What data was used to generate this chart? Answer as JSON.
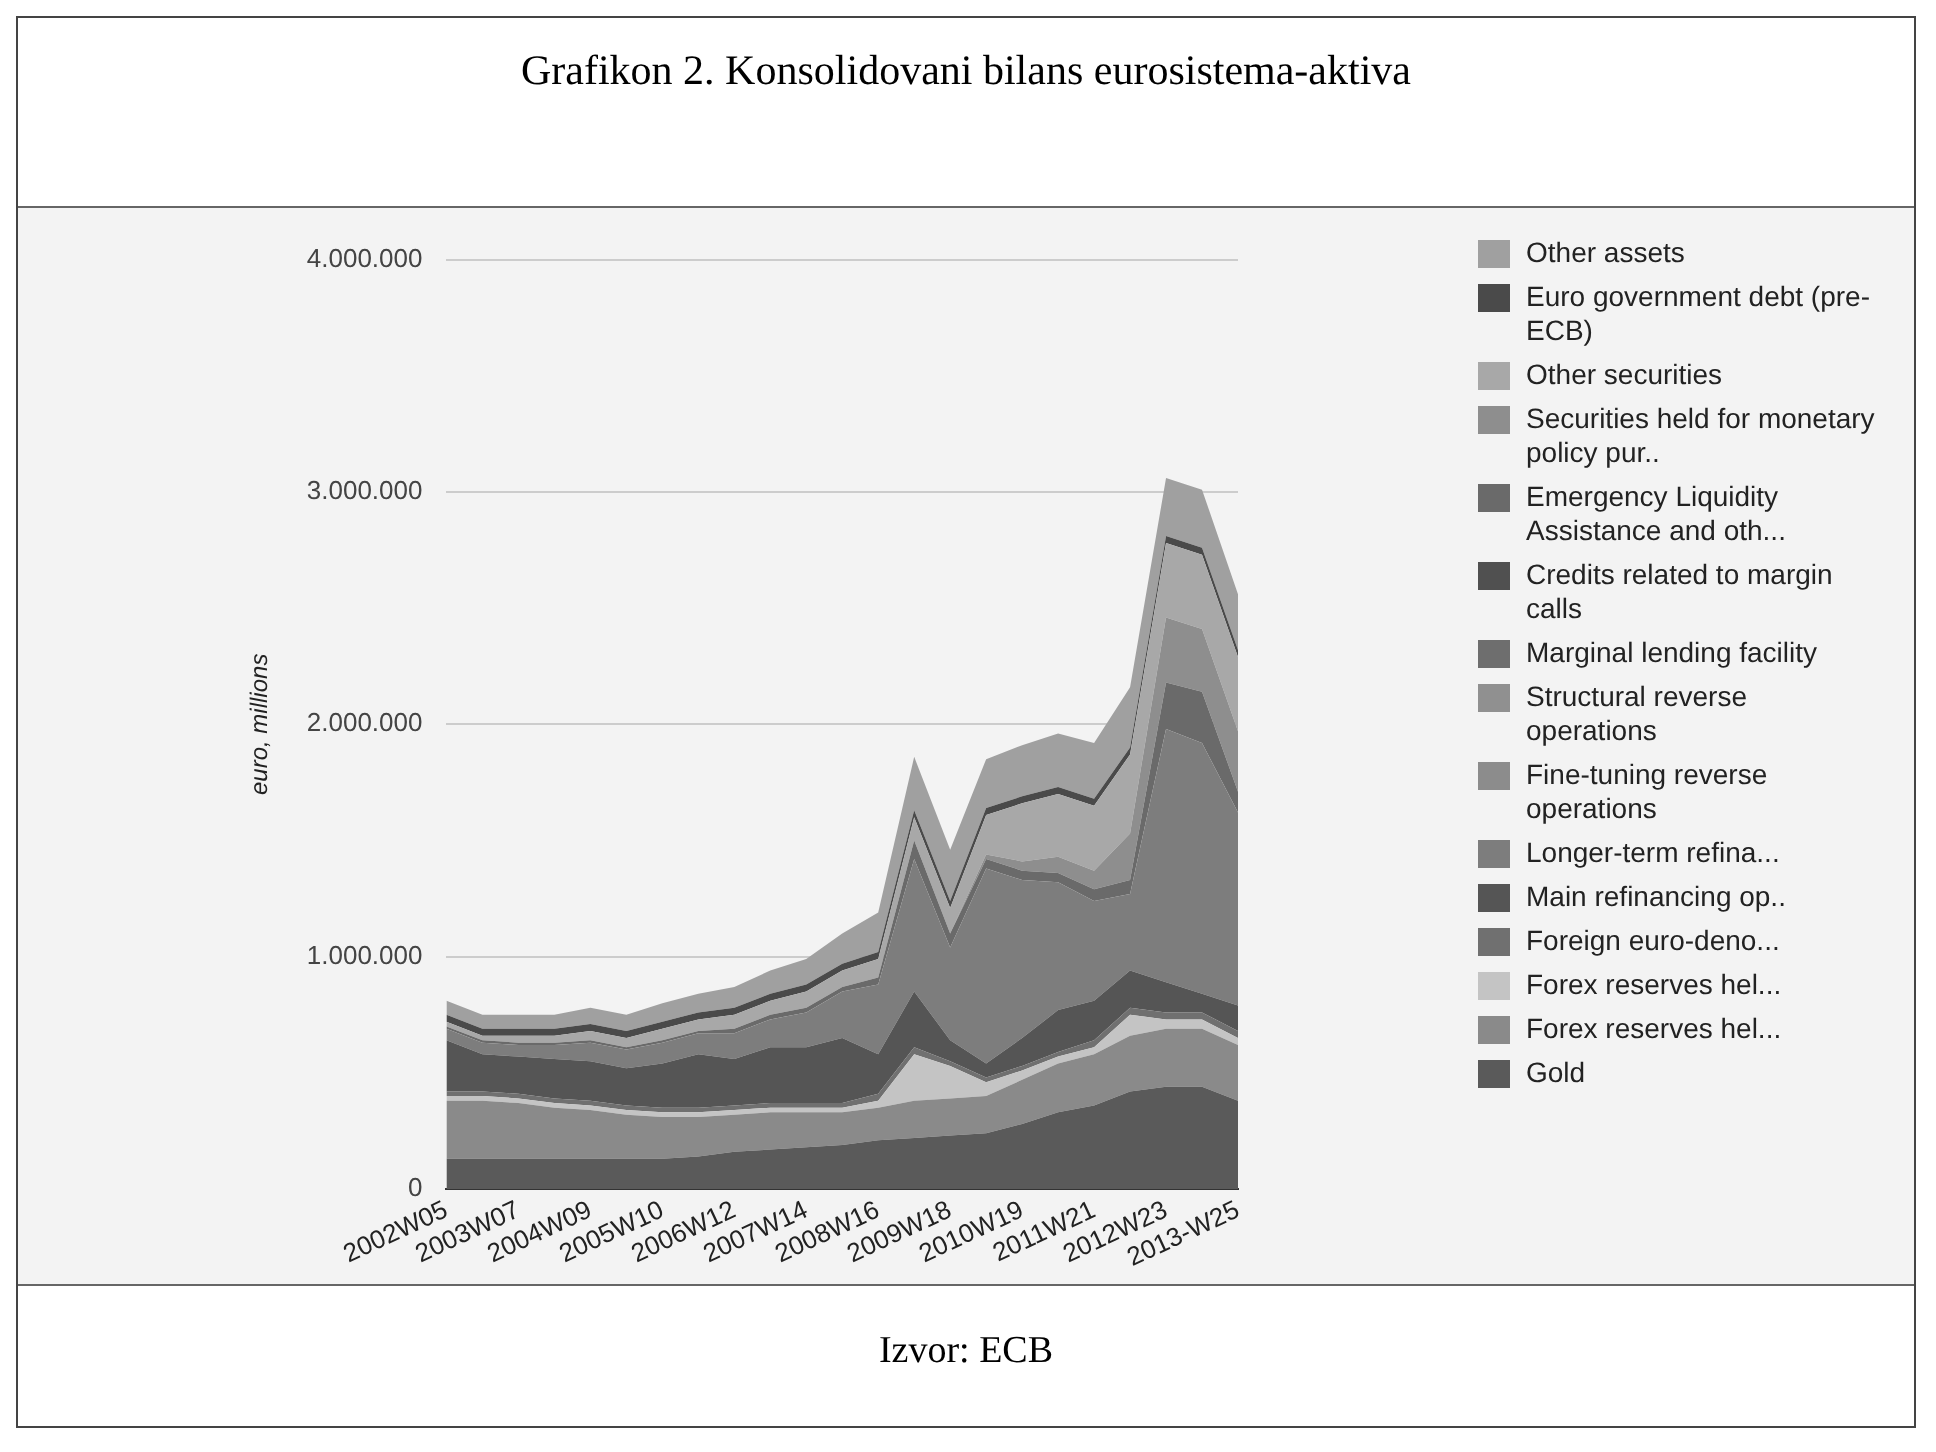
{
  "chart_data": {
    "type": "area",
    "title": "Grafikon 2. Konsolidovani bilans eurosistema-aktiva",
    "ylabel": "euro, millions",
    "annotations": [
      "Izvor: ECB"
    ],
    "categories": [
      "2002W05",
      null,
      "2003W07",
      null,
      "2004W09",
      null,
      "2005W10",
      null,
      "2006W12",
      null,
      "2007W14",
      null,
      "2008W16",
      null,
      "2009W18",
      null,
      "2010W19",
      null,
      "2011W21",
      null,
      "2012W23",
      null,
      "2013-W25"
    ],
    "stacked": true,
    "ylim": [
      0,
      4000000
    ],
    "yticks": [
      0,
      {
        "value": 1000000,
        "label": "1.000.000"
      },
      {
        "value": 2000000,
        "label": "2.000.000"
      },
      {
        "value": 3000000,
        "label": "3.000.000"
      },
      {
        "value": 4000000,
        "label": "4.000.000"
      }
    ],
    "grid": "y",
    "legend": "right",
    "marker": "none",
    "series": [
      {
        "name": "Gold",
        "color": "#5a5a5a",
        "values": [
          130000,
          130000,
          130000,
          130000,
          130000,
          130000,
          130000,
          140000,
          160000,
          170000,
          180000,
          190000,
          210000,
          220000,
          230000,
          240000,
          280000,
          330000,
          360000,
          420000,
          440000,
          440000,
          380000
        ]
      },
      {
        "name": "Forex reserves hel...",
        "color": "#8a8a8a",
        "values": [
          250000,
          250000,
          240000,
          220000,
          210000,
          190000,
          180000,
          170000,
          160000,
          160000,
          150000,
          140000,
          140000,
          160000,
          160000,
          160000,
          190000,
          210000,
          220000,
          240000,
          250000,
          250000,
          240000
        ]
      },
      {
        "name": "Forex reserves hel...",
        "color": "#c4c4c4",
        "values": [
          20000,
          20000,
          20000,
          20000,
          20000,
          20000,
          20000,
          20000,
          20000,
          20000,
          20000,
          20000,
          30000,
          200000,
          140000,
          60000,
          40000,
          30000,
          30000,
          90000,
          40000,
          40000,
          30000
        ]
      },
      {
        "name": "Foreign euro-deno...",
        "color": "#707070",
        "values": [
          20000,
          20000,
          20000,
          20000,
          20000,
          20000,
          20000,
          20000,
          20000,
          20000,
          20000,
          20000,
          30000,
          30000,
          20000,
          20000,
          20000,
          20000,
          30000,
          30000,
          30000,
          30000,
          30000
        ]
      },
      {
        "name": "Main refinancing op..",
        "color": "#555555",
        "values": [
          220000,
          160000,
          160000,
          170000,
          170000,
          160000,
          190000,
          230000,
          200000,
          240000,
          240000,
          280000,
          170000,
          240000,
          90000,
          60000,
          120000,
          180000,
          170000,
          160000,
          130000,
          80000,
          110000
        ]
      },
      {
        "name": "Longer-term refina...",
        "color": "#7d7d7d",
        "values": [
          50000,
          50000,
          50000,
          60000,
          80000,
          80000,
          90000,
          90000,
          110000,
          120000,
          150000,
          200000,
          300000,
          570000,
          400000,
          840000,
          680000,
          550000,
          430000,
          330000,
          1090000,
          1080000,
          830000
        ]
      },
      {
        "name": "Fine-tuning reverse operations",
        "color": "#8c8c8c",
        "values": [
          null,
          null,
          null,
          null,
          null,
          null,
          null,
          null,
          null,
          null,
          null,
          null,
          null,
          null,
          null,
          null,
          null,
          null,
          null,
          null,
          null,
          null,
          null
        ]
      },
      {
        "name": "Structural reverse operations",
        "color": "#909090",
        "values": [
          null,
          null,
          null,
          null,
          null,
          null,
          null,
          null,
          null,
          null,
          null,
          null,
          null,
          null,
          null,
          null,
          null,
          null,
          null,
          null,
          null,
          null,
          null
        ]
      },
      {
        "name": "Marginal lending facility",
        "color": "#6e6e6e",
        "values": [
          null,
          null,
          null,
          null,
          null,
          null,
          null,
          null,
          null,
          null,
          null,
          null,
          null,
          null,
          null,
          null,
          null,
          null,
          null,
          null,
          null,
          null,
          null
        ]
      },
      {
        "name": "Credits related to margin calls",
        "color": "#505050",
        "values": [
          null,
          null,
          null,
          null,
          null,
          null,
          null,
          null,
          null,
          null,
          null,
          null,
          null,
          null,
          null,
          null,
          null,
          null,
          null,
          null,
          null,
          null,
          null
        ]
      },
      {
        "name": "Emergency Liquidity Assistance and oth...",
        "color": "#6a6a6a",
        "values": [
          10000,
          10000,
          10000,
          10000,
          10000,
          10000,
          10000,
          10000,
          20000,
          20000,
          20000,
          20000,
          30000,
          80000,
          60000,
          40000,
          40000,
          40000,
          50000,
          60000,
          200000,
          220000,
          90000
        ]
      },
      {
        "name": "Securities held for monetary policy pur..",
        "color": "#8e8e8e",
        "values": [
          0,
          0,
          0,
          0,
          0,
          0,
          0,
          0,
          0,
          0,
          0,
          0,
          0,
          0,
          0,
          20000,
          40000,
          70000,
          80000,
          200000,
          280000,
          270000,
          260000
        ]
      },
      {
        "name": "Other securities",
        "color": "#a8a8a8",
        "values": [
          20000,
          20000,
          30000,
          30000,
          40000,
          40000,
          50000,
          50000,
          60000,
          60000,
          70000,
          70000,
          80000,
          100000,
          110000,
          170000,
          250000,
          270000,
          280000,
          340000,
          320000,
          320000,
          320000
        ]
      },
      {
        "name": "Euro government debt (pre-ECB)",
        "color": "#4a4a4a",
        "values": [
          30000,
          30000,
          30000,
          30000,
          30000,
          30000,
          30000,
          30000,
          30000,
          30000,
          30000,
          30000,
          30000,
          30000,
          30000,
          30000,
          30000,
          30000,
          30000,
          30000,
          30000,
          30000,
          30000
        ]
      },
      {
        "name": "Other assets",
        "color": "#a0a0a0",
        "values": [
          60000,
          60000,
          60000,
          60000,
          70000,
          70000,
          80000,
          80000,
          90000,
          100000,
          110000,
          130000,
          170000,
          230000,
          220000,
          210000,
          220000,
          230000,
          240000,
          260000,
          250000,
          250000,
          240000
        ]
      }
    ]
  }
}
